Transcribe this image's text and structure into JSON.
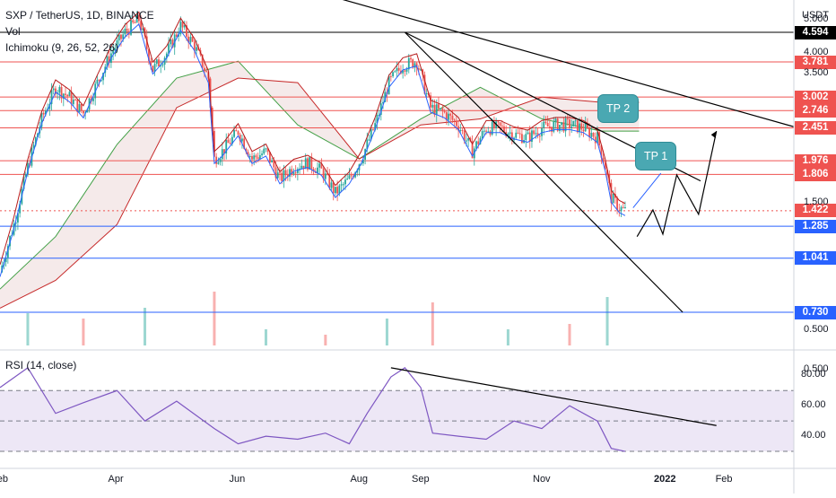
{
  "header": {
    "symbol_line": "SXP / TetherUS, 1D, BINANCE",
    "volume_label": "Vol",
    "ichimoku_label": "Ichimoku (9, 26, 52, 26)",
    "rsi_label": "RSI (14, close)",
    "currency": "USDT"
  },
  "colors": {
    "up_candle": "#26a69a",
    "down_candle": "#ef5350",
    "resistance": "#ef5350",
    "support": "#2962ff",
    "tenkan": "#2962ff",
    "kijun": "#b71c1c",
    "span_a": "#43a047",
    "span_b": "#c62828",
    "rsi_line": "#7e57c2",
    "rsi_band": "#ede7f6",
    "tp_bubble": "#4aa8b2",
    "last_price": "#ef5350",
    "black_tag": "#000000"
  },
  "chart_data": [
    {
      "type": "candlestick",
      "title": "SXP / TetherUS, 1D, BINANCE",
      "y_scale": "log",
      "y_unit": "USDT",
      "x_ticks": [
        "Feb",
        "Apr",
        "Jun",
        "Aug",
        "Sep",
        "Nov",
        "2022",
        "Feb"
      ],
      "y_ticks": [
        "5.000",
        "4.000",
        "3.500",
        "1.500",
        "0.500"
      ],
      "tick_dates": [
        "2021-02-01",
        "2021-04-01",
        "2021-06-01",
        "2021-08-01",
        "2021-09-01",
        "2021-11-01",
        "2022-01-01",
        "2022-02-01"
      ],
      "tick_values": [
        5.0,
        4.0,
        3.5,
        1.5,
        0.5
      ],
      "x_range": [
        "2021-02-01",
        "2022-03-08"
      ],
      "y_range": [
        0.42,
        5.3
      ],
      "grid": false,
      "price_labels": [
        {
          "value": 4.594,
          "label": "4.594",
          "kind": "black"
        },
        {
          "value": 3.781,
          "label": "3.781",
          "kind": "resistance"
        },
        {
          "value": 3.002,
          "label": "3.002",
          "kind": "resistance"
        },
        {
          "value": 2.746,
          "label": "2.746",
          "kind": "resistance"
        },
        {
          "value": 2.451,
          "label": "2.451",
          "kind": "resistance"
        },
        {
          "value": 1.976,
          "label": "1.976",
          "kind": "resistance"
        },
        {
          "value": 1.806,
          "label": "1.806",
          "kind": "resistance"
        },
        {
          "value": 1.422,
          "label": "1.422",
          "kind": "last"
        },
        {
          "value": 1.285,
          "label": "1.285",
          "kind": "support"
        },
        {
          "value": 1.041,
          "label": "1.041",
          "kind": "support"
        },
        {
          "value": 0.73,
          "label": "0.730",
          "kind": "support"
        }
      ],
      "close_path": [
        [
          "2021-02-01",
          0.95
        ],
        [
          "2021-02-08",
          1.3
        ],
        [
          "2021-02-15",
          1.9
        ],
        [
          "2021-02-22",
          2.6
        ],
        [
          "2021-03-01",
          3.2
        ],
        [
          "2021-03-08",
          3.0
        ],
        [
          "2021-03-15",
          2.7
        ],
        [
          "2021-03-22",
          3.3
        ],
        [
          "2021-03-29",
          4.0
        ],
        [
          "2021-04-05",
          4.6
        ],
        [
          "2021-04-12",
          5.0
        ],
        [
          "2021-04-19",
          3.6
        ],
        [
          "2021-04-26",
          4.0
        ],
        [
          "2021-05-03",
          4.8
        ],
        [
          "2021-05-10",
          4.2
        ],
        [
          "2021-05-17",
          3.4
        ],
        [
          "2021-05-20",
          2.0
        ],
        [
          "2021-05-24",
          2.1
        ],
        [
          "2021-06-01",
          2.4
        ],
        [
          "2021-06-08",
          2.0
        ],
        [
          "2021-06-15",
          2.1
        ],
        [
          "2021-06-22",
          1.75
        ],
        [
          "2021-06-29",
          1.9
        ],
        [
          "2021-07-06",
          1.95
        ],
        [
          "2021-07-13",
          1.85
        ],
        [
          "2021-07-20",
          1.6
        ],
        [
          "2021-07-27",
          1.75
        ],
        [
          "2021-08-02",
          2.0
        ],
        [
          "2021-08-09",
          2.5
        ],
        [
          "2021-08-16",
          3.3
        ],
        [
          "2021-08-23",
          3.7
        ],
        [
          "2021-08-30",
          3.8
        ],
        [
          "2021-09-06",
          2.8
        ],
        [
          "2021-09-13",
          2.7
        ],
        [
          "2021-09-20",
          2.5
        ],
        [
          "2021-09-27",
          2.1
        ],
        [
          "2021-10-04",
          2.45
        ],
        [
          "2021-10-11",
          2.45
        ],
        [
          "2021-10-18",
          2.35
        ],
        [
          "2021-10-25",
          2.3
        ],
        [
          "2021-11-01",
          2.45
        ],
        [
          "2021-11-08",
          2.5
        ],
        [
          "2021-11-15",
          2.5
        ],
        [
          "2021-11-22",
          2.45
        ],
        [
          "2021-11-29",
          2.3
        ],
        [
          "2021-12-03",
          1.9
        ],
        [
          "2021-12-06",
          1.55
        ],
        [
          "2021-12-10",
          1.45
        ],
        [
          "2021-12-13",
          1.42
        ]
      ],
      "ichimoku": {
        "span_a": [
          [
            "2021-02-01",
            0.85
          ],
          [
            "2021-03-01",
            1.2
          ],
          [
            "2021-04-01",
            2.2
          ],
          [
            "2021-05-01",
            3.4
          ],
          [
            "2021-06-01",
            3.8
          ],
          [
            "2021-07-01",
            2.5
          ],
          [
            "2021-08-01",
            2.0
          ],
          [
            "2021-09-01",
            2.6
          ],
          [
            "2021-10-01",
            3.2
          ],
          [
            "2021-11-01",
            2.6
          ],
          [
            "2021-12-01",
            2.4
          ],
          [
            "2021-12-20",
            2.4
          ]
        ],
        "span_b": [
          [
            "2021-02-01",
            0.75
          ],
          [
            "2021-03-01",
            0.9
          ],
          [
            "2021-04-01",
            1.3
          ],
          [
            "2021-05-01",
            2.8
          ],
          [
            "2021-06-01",
            3.4
          ],
          [
            "2021-07-01",
            3.3
          ],
          [
            "2021-08-01",
            2.0
          ],
          [
            "2021-09-01",
            2.5
          ],
          [
            "2021-10-01",
            2.6
          ],
          [
            "2021-11-01",
            3.0
          ],
          [
            "2021-12-01",
            2.9
          ],
          [
            "2021-12-20",
            2.9
          ]
        ]
      },
      "volume_ticks": [
        "0.500"
      ],
      "volume": [
        {
          "x": "2021-02-15",
          "v": 0.6
        },
        {
          "x": "2021-03-15",
          "v": 0.5
        },
        {
          "x": "2021-04-15",
          "v": 0.7
        },
        {
          "x": "2021-05-20",
          "v": 1.0
        },
        {
          "x": "2021-06-15",
          "v": 0.3
        },
        {
          "x": "2021-07-15",
          "v": 0.2
        },
        {
          "x": "2021-08-15",
          "v": 0.5
        },
        {
          "x": "2021-09-07",
          "v": 0.8
        },
        {
          "x": "2021-10-15",
          "v": 0.3
        },
        {
          "x": "2021-11-15",
          "v": 0.4
        },
        {
          "x": "2021-12-04",
          "v": 0.9
        }
      ],
      "trendlines": [
        {
          "from": [
            "2021-05-10",
            7.5
          ],
          "to": [
            "2022-03-08",
            2.47
          ]
        },
        {
          "from": [
            "2021-08-24",
            4.594
          ],
          "to": [
            "2022-01-20",
            1.73
          ]
        },
        {
          "from": [
            "2021-08-24",
            4.594
          ],
          "to": [
            "2022-01-11",
            0.73
          ]
        }
      ],
      "projection": [
        [
          "2021-12-19",
          1.2
        ],
        [
          "2021-12-27",
          1.43
        ],
        [
          "2022-01-01",
          1.22
        ],
        [
          "2022-01-08",
          1.8
        ],
        [
          "2022-01-19",
          1.39
        ],
        [
          "2022-01-28",
          2.4
        ]
      ],
      "projection_up": [
        [
          "2021-12-17",
          1.45
        ],
        [
          "2021-12-31",
          1.82
        ]
      ],
      "annotations": [
        {
          "text": "TP 2",
          "at": [
            "2021-12-09",
            2.8
          ]
        },
        {
          "text": "TP 1",
          "at": [
            "2021-12-28",
            2.05
          ]
        }
      ]
    },
    {
      "type": "line",
      "title": "RSI (14, close)",
      "x_ticks": [
        "Feb",
        "Apr",
        "Jun",
        "Aug",
        "Sep",
        "Nov",
        "2022",
        "Feb"
      ],
      "y_ticks": [
        "80.00",
        "60.00",
        "40.00"
      ],
      "tick_values": [
        80,
        60,
        40
      ],
      "y_range": [
        20,
        92
      ],
      "band": [
        30,
        70
      ],
      "midline": 50,
      "series": [
        {
          "values": [
            [
              "2021-02-01",
              72
            ],
            [
              "2021-02-15",
              85
            ],
            [
              "2021-03-01",
              55
            ],
            [
              "2021-03-15",
              62
            ],
            [
              "2021-04-01",
              70
            ],
            [
              "2021-04-15",
              50
            ],
            [
              "2021-05-01",
              63
            ],
            [
              "2021-05-20",
              45
            ],
            [
              "2021-06-01",
              35
            ],
            [
              "2021-06-15",
              40
            ],
            [
              "2021-07-01",
              38
            ],
            [
              "2021-07-15",
              42
            ],
            [
              "2021-07-27",
              35
            ],
            [
              "2021-08-05",
              55
            ],
            [
              "2021-08-17",
              79
            ],
            [
              "2021-08-24",
              85
            ],
            [
              "2021-09-01",
              72
            ],
            [
              "2021-09-07",
              42
            ],
            [
              "2021-09-20",
              40
            ],
            [
              "2021-10-04",
              38
            ],
            [
              "2021-10-18",
              50
            ],
            [
              "2021-11-01",
              45
            ],
            [
              "2021-11-15",
              60
            ],
            [
              "2021-11-29",
              50
            ],
            [
              "2021-12-06",
              32
            ],
            [
              "2021-12-13",
              30
            ]
          ]
        }
      ],
      "trendline": {
        "from": [
          "2021-08-17",
          85
        ],
        "to": [
          "2022-01-28",
          47
        ]
      }
    }
  ]
}
